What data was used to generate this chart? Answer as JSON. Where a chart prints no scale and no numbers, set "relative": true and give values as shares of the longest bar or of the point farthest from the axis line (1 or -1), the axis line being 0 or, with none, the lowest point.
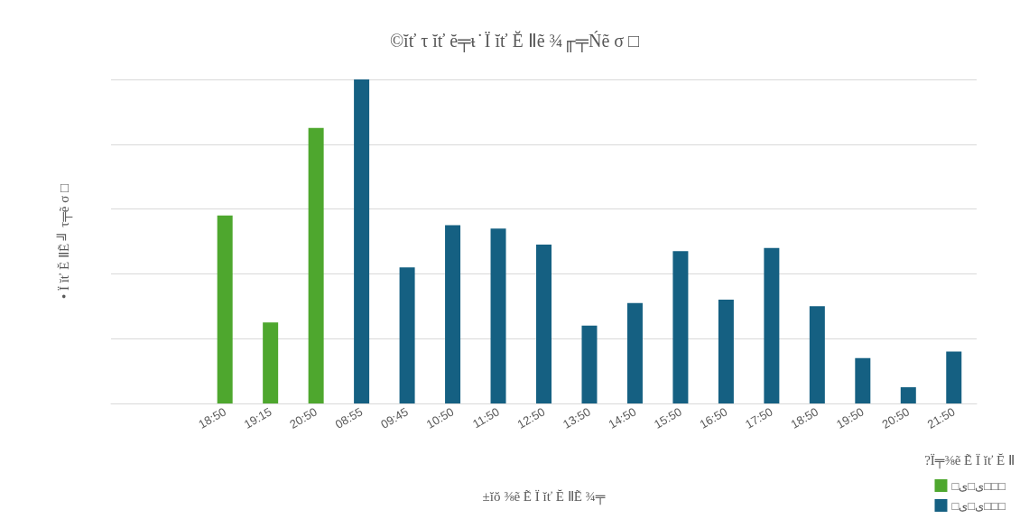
{
  "chart_data": {
    "type": "bar",
    "title": "©ĭť τ ĭť ĕ╤ᵼ ̇ Ï ĭť Ĕ Ⅱẽ ¾╓╤Ńẽ σ □",
    "xlabel": "±ĭŏ ⅜ẽ Ẽ Ï ĭť Ĕ ⅡẼ ¾╤",
    "ylabel": "• Ï ĭť Ĕ ⅡẼ ╝ τ╤ẽ σ □",
    "legend_title": "?Ï╤⅜ẽ Ẽ Ï ĭť Ĕ Ⅱ",
    "categories": [
      null,
      null,
      "18:50",
      "19:15",
      "20:50",
      "08:55",
      "09:45",
      "10:50",
      "11:50",
      "12:50",
      "13:50",
      "14:50",
      "15:50",
      "16:50",
      "17:50",
      "18:50",
      "19:50",
      "20:50",
      "21:50"
    ],
    "relative": true,
    "grid": "y",
    "legend": "bottom right",
    "series": [
      {
        "name": "□ى□ى□□□",
        "color": "#4ea72e",
        "values": [
          null,
          null,
          0.58,
          0.25,
          0.85,
          null,
          null,
          null,
          null,
          null,
          null,
          null,
          null,
          null,
          null,
          null,
          null,
          null,
          null
        ]
      },
      {
        "name": "□ى□ى□□□ ",
        "color": "#156082",
        "values": [
          null,
          null,
          null,
          null,
          null,
          1.0,
          0.42,
          0.55,
          0.54,
          0.49,
          0.24,
          0.31,
          0.47,
          0.32,
          0.48,
          0.3,
          0.14,
          0.05,
          0.16
        ]
      }
    ]
  }
}
